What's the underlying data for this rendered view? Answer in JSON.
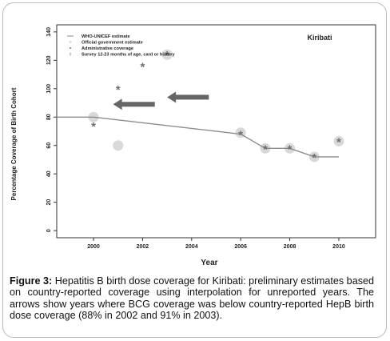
{
  "chart_data": {
    "type": "scatter",
    "title": "Kiribati",
    "xlabel": "Year",
    "ylabel": "Percentage Coverage of Birth Cohort",
    "xlim": [
      1998.5,
      2011.5
    ],
    "ylim": [
      -5,
      145
    ],
    "x_ticks": [
      2000,
      2002,
      2004,
      2006,
      2008,
      2010
    ],
    "y_ticks": [
      0,
      20,
      40,
      60,
      80,
      100,
      120,
      140
    ],
    "grid": false,
    "legend_position": "top-left",
    "legend": [
      "WHO-UNICEF estimate",
      "Official government estimate",
      "Administrative coverage",
      "Survey 12-23 months of age, card or history"
    ],
    "series": [
      {
        "name": "WHO-UNICEF estimate",
        "kind": "line",
        "points": [
          [
            1998.5,
            80
          ],
          [
            2000,
            80
          ],
          [
            2006,
            68
          ],
          [
            2007,
            58
          ],
          [
            2008,
            58
          ],
          [
            2009,
            52
          ],
          [
            2010,
            52
          ]
        ]
      },
      {
        "name": "Official government estimate",
        "kind": "circle",
        "points": [
          [
            2000,
            80
          ],
          [
            2001,
            60
          ],
          [
            2003,
            124
          ],
          [
            2006,
            69
          ],
          [
            2007,
            58
          ],
          [
            2008,
            58
          ],
          [
            2009,
            52
          ],
          [
            2010,
            63
          ]
        ]
      },
      {
        "name": "Administrative coverage",
        "kind": "asterisk",
        "points": [
          [
            2000,
            74
          ],
          [
            2001,
            100
          ],
          [
            2002,
            116
          ],
          [
            2003,
            124
          ],
          [
            2006,
            68
          ],
          [
            2007,
            58
          ],
          [
            2008,
            58
          ],
          [
            2009,
            52
          ],
          [
            2010,
            63
          ]
        ]
      }
    ],
    "arrows": [
      {
        "from_x": 2002.5,
        "to_x": 2000.8,
        "y": 89
      },
      {
        "from_x": 2004.7,
        "to_x": 2003.0,
        "y": 94
      }
    ],
    "colors": {
      "line": "#8c8c8c",
      "circle": "#d9d9d9",
      "asterisk": "#707070",
      "arrow": "#666666",
      "axis": "#333333"
    }
  },
  "caption": {
    "figure_label": "Figure 3:",
    "text": " Hepatitis B birth dose coverage for Kiribati: preliminary estimates based on country-reported coverage using interpolation for unreported years. The arrows show years where BCG coverage was below country-reported HepB birth dose coverage (88% in 2002 and 91% in 2003)."
  }
}
